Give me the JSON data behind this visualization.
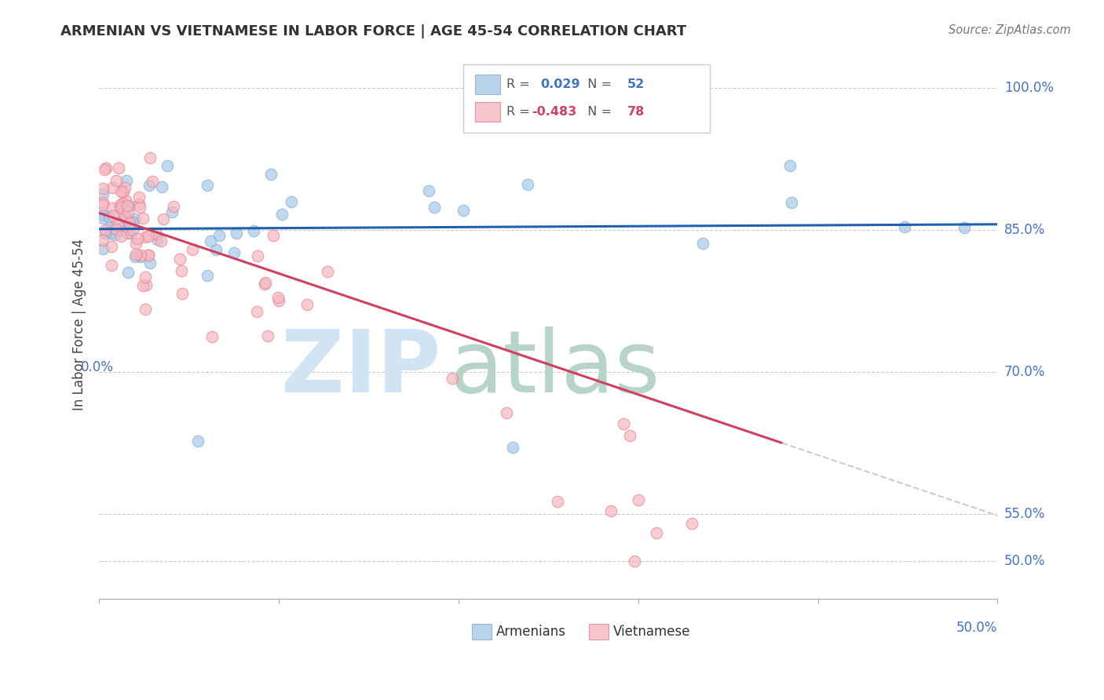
{
  "title": "ARMENIAN VS VIETNAMESE IN LABOR FORCE | AGE 45-54 CORRELATION CHART",
  "source": "Source: ZipAtlas.com",
  "ylabel": "In Labor Force | Age 45-54",
  "ytick_vals": [
    0.5,
    0.55,
    0.7,
    0.85,
    1.0
  ],
  "ytick_labels": [
    "50.0%",
    "55.0%",
    "70.0%",
    "85.0%",
    "100.0%"
  ],
  "xlim": [
    0.0,
    0.5
  ],
  "ylim": [
    0.46,
    1.04
  ],
  "legend_armenian_R": "0.029",
  "legend_armenian_N": "52",
  "legend_vietnamese_R": "-0.483",
  "legend_vietnamese_N": "78",
  "armenian_color": "#a8c8e8",
  "armenian_edge": "#7bafd4",
  "vietnamese_color": "#f4b8c0",
  "vietnamese_edge": "#e88090",
  "trendline_armenian_color": "#2060b0",
  "trendline_vietnamese_color": "#d04060",
  "trendline_extended_color": "#cccccc",
  "grid_color": "#cccccc",
  "legend_R_arm_color": "#4472c4",
  "legend_N_arm_color": "#4472c4",
  "legend_R_vie_color": "#d04060",
  "legend_N_vie_color": "#d04060",
  "xlabel_color": "#4472c4",
  "ytick_color": "#4472c4",
  "watermark_zip_color": "#d0e4f4",
  "watermark_atlas_color": "#b8d4c8"
}
